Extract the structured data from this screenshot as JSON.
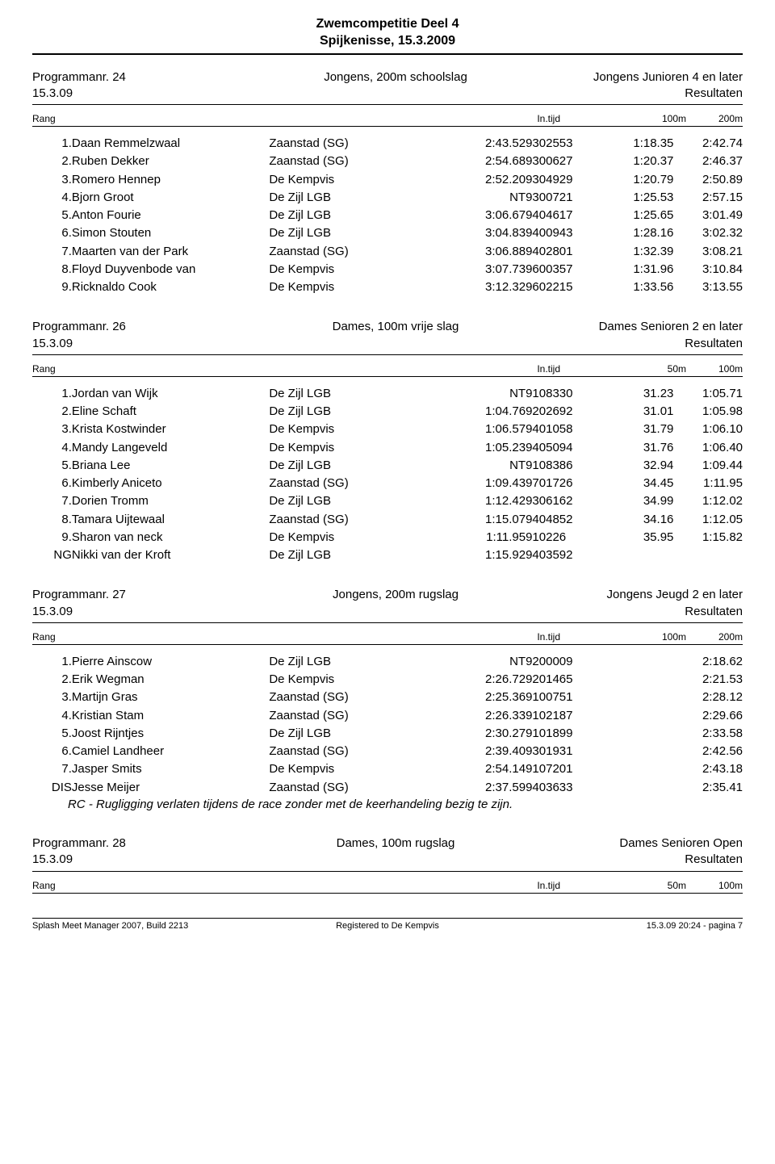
{
  "header": {
    "line1": "Zwemcompetitie Deel 4",
    "line2": "Spijkenisse, 15.3.2009"
  },
  "col_labels": {
    "rang": "Rang",
    "intijd": "In.tijd",
    "c100m": "100m",
    "c200m": "200m",
    "c50m": "50m"
  },
  "programs": [
    {
      "prog_nr": "Programmanr. 24",
      "date": "15.3.09",
      "event": "Jongens, 200m schoolslag",
      "category": "Jongens Junioren 4 en later",
      "resultaten": "Resultaten",
      "split_labels": [
        "100m",
        "200m"
      ],
      "rows": [
        {
          "rank": "1.",
          "name": "Daan Remmelzwaal",
          "club": "Zaanstad (SG)",
          "in": "2:43.52",
          "id": "9302553",
          "s1": "1:18.35",
          "s2": "2:42.74"
        },
        {
          "rank": "2.",
          "name": "Ruben Dekker",
          "club": "Zaanstad (SG)",
          "in": "2:54.68",
          "id": "9300627",
          "s1": "1:20.37",
          "s2": "2:46.37"
        },
        {
          "rank": "3.",
          "name": "Romero Hennep",
          "club": "De Kempvis",
          "in": "2:52.20",
          "id": "9304929",
          "s1": "1:20.79",
          "s2": "2:50.89"
        },
        {
          "rank": "4.",
          "name": "Bjorn Groot",
          "club": "De Zijl LGB",
          "in": "NT",
          "id": "9300721",
          "s1": "1:25.53",
          "s2": "2:57.15"
        },
        {
          "rank": "5.",
          "name": "Anton Fourie",
          "club": "De Zijl LGB",
          "in": "3:06.67",
          "id": "9404617",
          "s1": "1:25.65",
          "s2": "3:01.49"
        },
        {
          "rank": "6.",
          "name": "Simon Stouten",
          "club": "De Zijl LGB",
          "in": "3:04.83",
          "id": "9400943",
          "s1": "1:28.16",
          "s2": "3:02.32"
        },
        {
          "rank": "7.",
          "name": "Maarten van der Park",
          "club": "Zaanstad (SG)",
          "in": "3:06.88",
          "id": "9402801",
          "s1": "1:32.39",
          "s2": "3:08.21"
        },
        {
          "rank": "8.",
          "name": "Floyd Duyvenbode van",
          "club": "De Kempvis",
          "in": "3:07.73",
          "id": "9600357",
          "s1": "1:31.96",
          "s2": "3:10.84"
        },
        {
          "rank": "9.",
          "name": "Ricknaldo Cook",
          "club": "De Kempvis",
          "in": "3:12.32",
          "id": "9602215",
          "s1": "1:33.56",
          "s2": "3:13.55"
        }
      ],
      "note": ""
    },
    {
      "prog_nr": "Programmanr. 26",
      "date": "15.3.09",
      "event": "Dames, 100m vrije slag",
      "category": "Dames Senioren 2 en later",
      "resultaten": "Resultaten",
      "split_labels": [
        "50m",
        "100m"
      ],
      "rows": [
        {
          "rank": "1.",
          "name": "Jordan van Wijk",
          "club": "De Zijl LGB",
          "in": "NT",
          "id": "9108330",
          "s1": "31.23",
          "s2": "1:05.71"
        },
        {
          "rank": "2.",
          "name": "Eline Schaft",
          "club": "De Zijl LGB",
          "in": "1:04.76",
          "id": "9202692",
          "s1": "31.01",
          "s2": "1:05.98"
        },
        {
          "rank": "3.",
          "name": "Krista Kostwinder",
          "club": "De Kempvis",
          "in": "1:06.57",
          "id": "9401058",
          "s1": "31.79",
          "s2": "1:06.10"
        },
        {
          "rank": "4.",
          "name": "Mandy Langeveld",
          "club": "De Kempvis",
          "in": "1:05.23",
          "id": "9405094",
          "s1": "31.76",
          "s2": "1:06.40"
        },
        {
          "rank": "5.",
          "name": "Briana Lee",
          "club": "De Zijl LGB",
          "in": "NT",
          "id": "9108386",
          "s1": "32.94",
          "s2": "1:09.44"
        },
        {
          "rank": "6.",
          "name": "Kimberly Aniceto",
          "club": "Zaanstad (SG)",
          "in": "1:09.43",
          "id": "9701726",
          "s1": "34.45",
          "s2": "1:11.95"
        },
        {
          "rank": "7.",
          "name": "Dorien Tromm",
          "club": "De Zijl LGB",
          "in": "1:12.42",
          "id": "9306162",
          "s1": "34.99",
          "s2": "1:12.02"
        },
        {
          "rank": "8.",
          "name": "Tamara Uijtewaal",
          "club": "Zaanstad (SG)",
          "in": "1:15.07",
          "id": "9404852",
          "s1": "34.16",
          "s2": "1:12.05"
        },
        {
          "rank": "9.",
          "name": "Sharon van neck",
          "club": "De Kempvis",
          "in": "1:11.95",
          "id": "910226",
          "s1": "35.95",
          "s2": "1:15.82"
        },
        {
          "rank": "NG",
          "name": "Nikki van der Kroft",
          "club": "De Zijl LGB",
          "in": "1:15.92",
          "id": "9403592",
          "s1": "",
          "s2": ""
        }
      ],
      "note": ""
    },
    {
      "prog_nr": "Programmanr. 27",
      "date": "15.3.09",
      "event": "Jongens, 200m rugslag",
      "category": "Jongens Jeugd 2 en later",
      "resultaten": "Resultaten",
      "split_labels": [
        "100m",
        "200m"
      ],
      "rows": [
        {
          "rank": "1.",
          "name": "Pierre Ainscow",
          "club": "De Zijl LGB",
          "in": "NT",
          "id": "9200009",
          "s1": "",
          "s2": "2:18.62"
        },
        {
          "rank": "2.",
          "name": "Erik Wegman",
          "club": "De Kempvis",
          "in": "2:26.72",
          "id": "9201465",
          "s1": "",
          "s2": "2:21.53"
        },
        {
          "rank": "3.",
          "name": "Martijn Gras",
          "club": "Zaanstad (SG)",
          "in": "2:25.36",
          "id": "9100751",
          "s1": "",
          "s2": "2:28.12"
        },
        {
          "rank": "4.",
          "name": "Kristian Stam",
          "club": "Zaanstad (SG)",
          "in": "2:26.33",
          "id": "9102187",
          "s1": "",
          "s2": "2:29.66"
        },
        {
          "rank": "5.",
          "name": "Joost Rijntjes",
          "club": "De Zijl LGB",
          "in": "2:30.27",
          "id": "9101899",
          "s1": "",
          "s2": "2:33.58"
        },
        {
          "rank": "6.",
          "name": "Camiel Landheer",
          "club": "Zaanstad (SG)",
          "in": "2:39.40",
          "id": "9301931",
          "s1": "",
          "s2": "2:42.56"
        },
        {
          "rank": "7.",
          "name": "Jasper Smits",
          "club": "De Kempvis",
          "in": "2:54.14",
          "id": "9107201",
          "s1": "",
          "s2": "2:43.18"
        },
        {
          "rank": "DIS",
          "name": "Jesse Meijer",
          "club": "Zaanstad (SG)",
          "in": "2:37.59",
          "id": "9403633",
          "s1": "",
          "s2": "2:35.41"
        }
      ],
      "note": "RC - Rugligging verlaten tijdens de race zonder met de keerhandeling bezig te zijn."
    },
    {
      "prog_nr": "Programmanr. 28",
      "date": "15.3.09",
      "event": "Dames, 100m rugslag",
      "category": "Dames Senioren Open",
      "resultaten": "Resultaten",
      "split_labels": [
        "50m",
        "100m"
      ],
      "rows": [],
      "note": ""
    }
  ],
  "footer": {
    "left": "Splash Meet Manager 2007, Build 2213",
    "mid": "Registered to De Kempvis",
    "right": "15.3.09 20:24 - pagina 7"
  }
}
